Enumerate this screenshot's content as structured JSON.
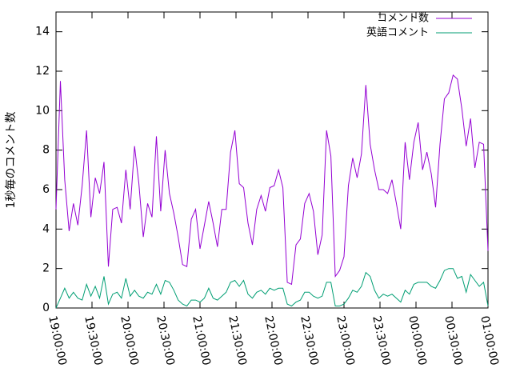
{
  "chart_data": {
    "type": "line",
    "title": "",
    "xlabel": "",
    "ylabel": "1秒毎のコメント数",
    "xlim": [
      "19:00:00",
      "01:00:00"
    ],
    "ylim": [
      0,
      15
    ],
    "yticks": [
      0,
      2,
      4,
      6,
      8,
      10,
      12,
      14
    ],
    "xticks": [
      "19:00:00",
      "19:30:00",
      "20:00:00",
      "20:30:00",
      "21:00:00",
      "21:30:00",
      "22:00:00",
      "22:30:00",
      "23:00:00",
      "23:30:00",
      "00:00:00",
      "00:30:00",
      "01:00:00"
    ],
    "grid": false,
    "legend_position": "top-right",
    "x_interval_minutes": 3,
    "series": [
      {
        "name": "コメント数",
        "color": "#9400d3",
        "values": [
          5.0,
          11.5,
          6.5,
          3.9,
          5.3,
          4.2,
          6.2,
          9.0,
          4.6,
          6.6,
          5.8,
          7.4,
          2.1,
          5.0,
          5.1,
          4.3,
          7.0,
          5.0,
          8.2,
          6.3,
          3.6,
          5.3,
          4.6,
          8.7,
          4.9,
          8.0,
          5.8,
          4.8,
          3.6,
          2.2,
          2.1,
          4.5,
          5.0,
          3.0,
          4.2,
          5.4,
          4.3,
          3.1,
          5.0,
          5.0,
          7.9,
          9.0,
          6.3,
          6.1,
          4.3,
          3.2,
          5.0,
          5.7,
          4.9,
          6.1,
          6.2,
          7.0,
          6.1,
          1.3,
          1.2,
          3.2,
          3.5,
          5.3,
          5.8,
          4.9,
          2.7,
          3.7,
          9.0,
          7.7,
          1.6,
          1.9,
          2.6,
          6.2,
          7.6,
          6.6,
          7.8,
          11.3,
          8.3,
          7.0,
          6.0,
          6.0,
          5.8,
          6.5,
          5.3,
          4.0,
          8.4,
          6.5,
          8.4,
          9.4,
          7.0,
          7.9,
          6.8,
          5.1,
          8.3,
          10.6,
          10.9,
          11.8,
          11.6,
          10.1,
          8.2,
          9.6,
          7.1,
          8.4,
          8.3,
          2.9
        ]
      },
      {
        "name": "英語コメント",
        "color": "#009e73",
        "values": [
          0.0,
          0.5,
          1.0,
          0.5,
          0.8,
          0.5,
          0.4,
          1.2,
          0.6,
          1.1,
          0.5,
          1.6,
          0.2,
          0.7,
          0.8,
          0.5,
          1.5,
          0.6,
          0.9,
          0.6,
          0.5,
          0.8,
          0.7,
          1.2,
          0.7,
          1.4,
          1.3,
          0.9,
          0.4,
          0.2,
          0.1,
          0.4,
          0.4,
          0.3,
          0.5,
          1.0,
          0.5,
          0.4,
          0.6,
          0.8,
          1.3,
          1.4,
          1.1,
          1.4,
          0.7,
          0.5,
          0.8,
          0.9,
          0.7,
          1.0,
          0.9,
          1.0,
          1.0,
          0.2,
          0.1,
          0.3,
          0.4,
          0.8,
          0.8,
          0.6,
          0.5,
          0.6,
          1.3,
          1.3,
          0.1,
          0.1,
          0.2,
          0.5,
          0.9,
          0.8,
          1.1,
          1.8,
          1.6,
          0.9,
          0.5,
          0.7,
          0.6,
          0.7,
          0.5,
          0.3,
          0.9,
          0.7,
          1.2,
          1.3,
          1.3,
          1.3,
          1.1,
          1.0,
          1.4,
          1.9,
          2.0,
          2.0,
          1.5,
          1.6,
          0.8,
          1.7,
          1.4,
          1.1,
          1.3,
          0.1
        ]
      }
    ]
  }
}
